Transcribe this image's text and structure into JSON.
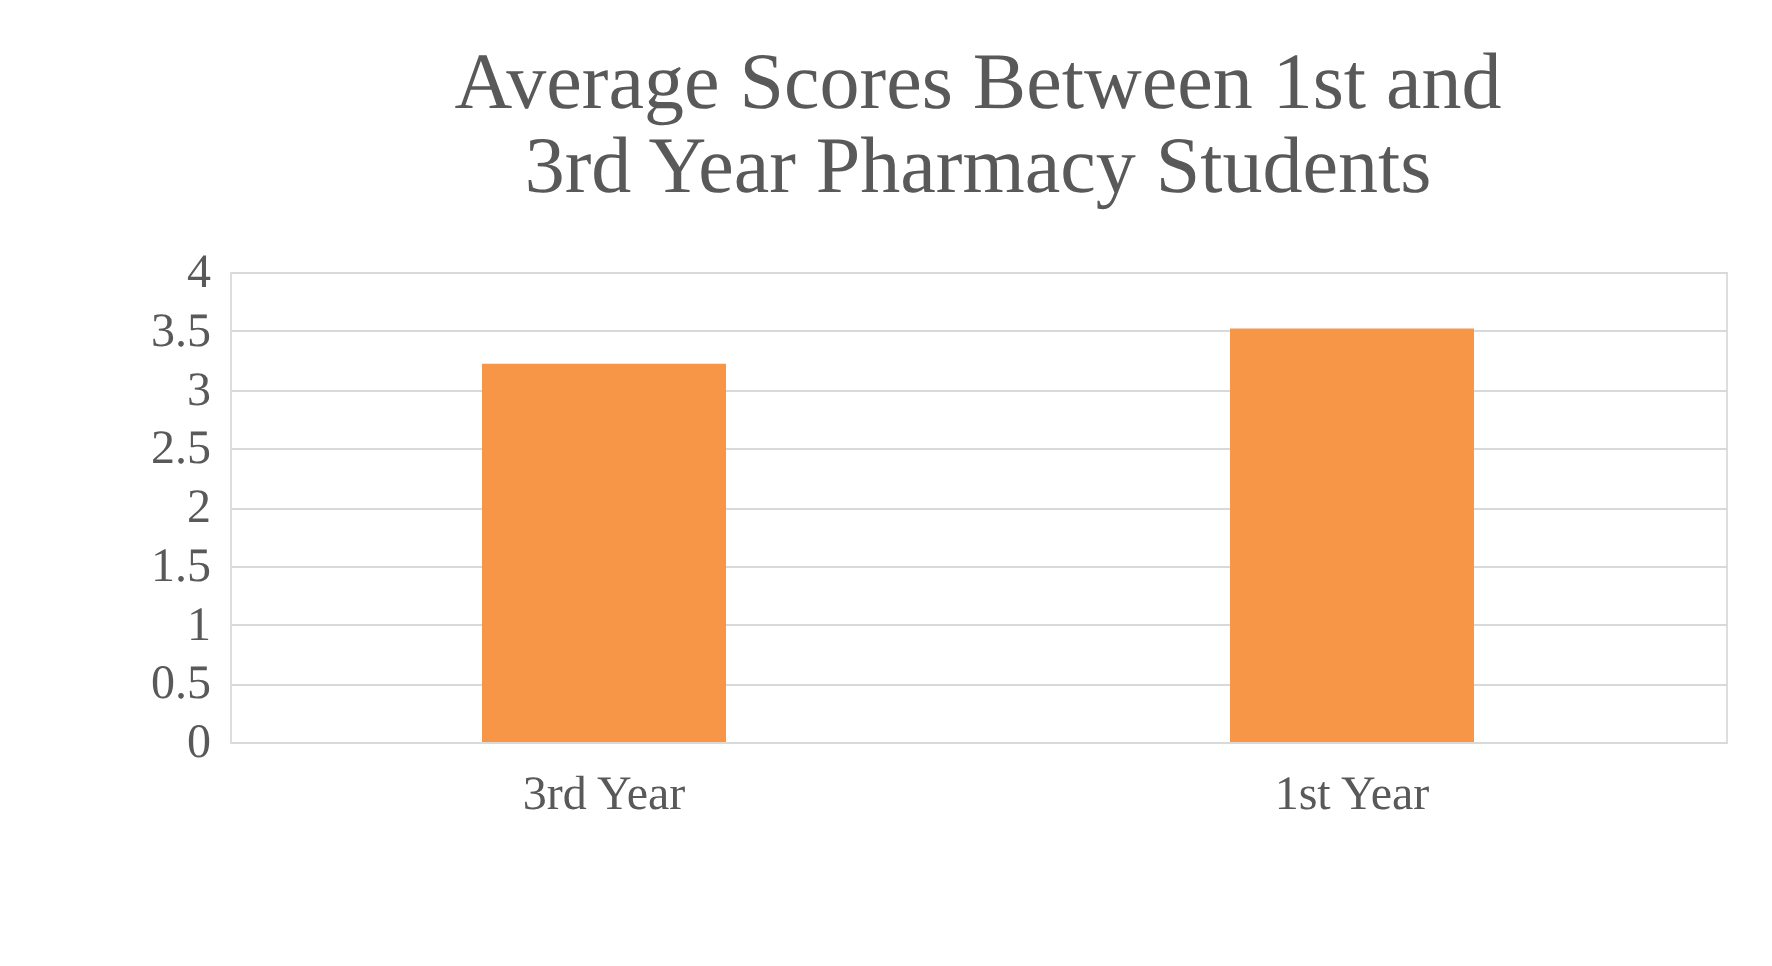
{
  "chart_data": {
    "type": "bar",
    "title": [
      "Average Scores Between 1st and",
      "3rd Year Pharmacy Students"
    ],
    "categories": [
      "3rd Year",
      "1st Year"
    ],
    "values": [
      3.22,
      3.52
    ],
    "color": "#f79646",
    "ylim": [
      0,
      4
    ],
    "yticks": [
      0,
      0.5,
      1,
      1.5,
      2,
      2.5,
      3,
      3.5,
      4
    ],
    "grid": "y"
  }
}
